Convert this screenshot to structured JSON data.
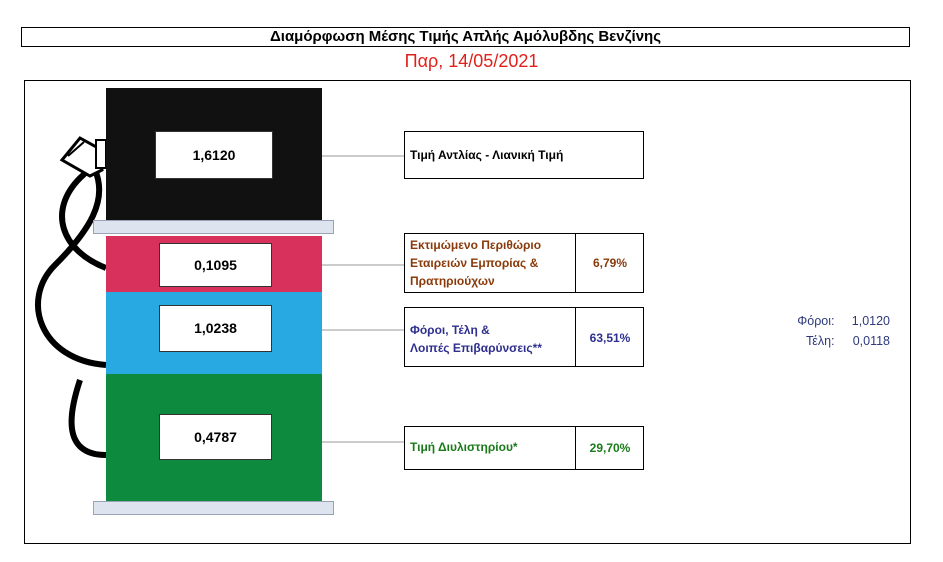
{
  "header": {
    "title": "Διαμόρφωση Μέσης Τιμής Απλής Αμόλυβδης Βενζίνης",
    "date": "Παρ, 14/05/2021"
  },
  "colors": {
    "pump_body": "#111111",
    "margin": "#d8315b",
    "taxes": "#29a9e1",
    "refinery": "#0e8a3f",
    "margin_text": "#8a3a0a",
    "taxes_text": "#2e2f8f",
    "refinery_text": "#1a7a1a"
  },
  "chart_data": {
    "type": "bar",
    "title": "Διαμόρφωση Μέσης Τιμής Απλής Αμόλυβδης Βενζίνης",
    "retail": {
      "label": "Τιμή Αντλίας - Λιανική Τιμή",
      "value": "1,6120",
      "value_num": 1.612
    },
    "components": [
      {
        "key": "margin",
        "label_lines": [
          "Εκτιμώμενο Περιθώριο",
          "Εταιρειών Εμπορίας &",
          "Πρατηριούχων"
        ],
        "value": "0,1095",
        "value_num": 0.1095,
        "percent": "6,79%"
      },
      {
        "key": "taxes",
        "label_lines": [
          "Φόροι, Τέλη &",
          "Λοιπές Επιβαρύνσεις**"
        ],
        "value": "1,0238",
        "value_num": 1.0238,
        "percent": "63,51%"
      },
      {
        "key": "refinery",
        "label_lines": [
          "Τιμή Διυλιστηρίου*"
        ],
        "value": "0,4787",
        "value_num": 0.4787,
        "percent": "29,70%"
      }
    ],
    "tax_breakdown": [
      {
        "label": "Φόροι:",
        "value": "1,0120"
      },
      {
        "label": "Τέλη:",
        "value": "0,0118"
      }
    ]
  }
}
